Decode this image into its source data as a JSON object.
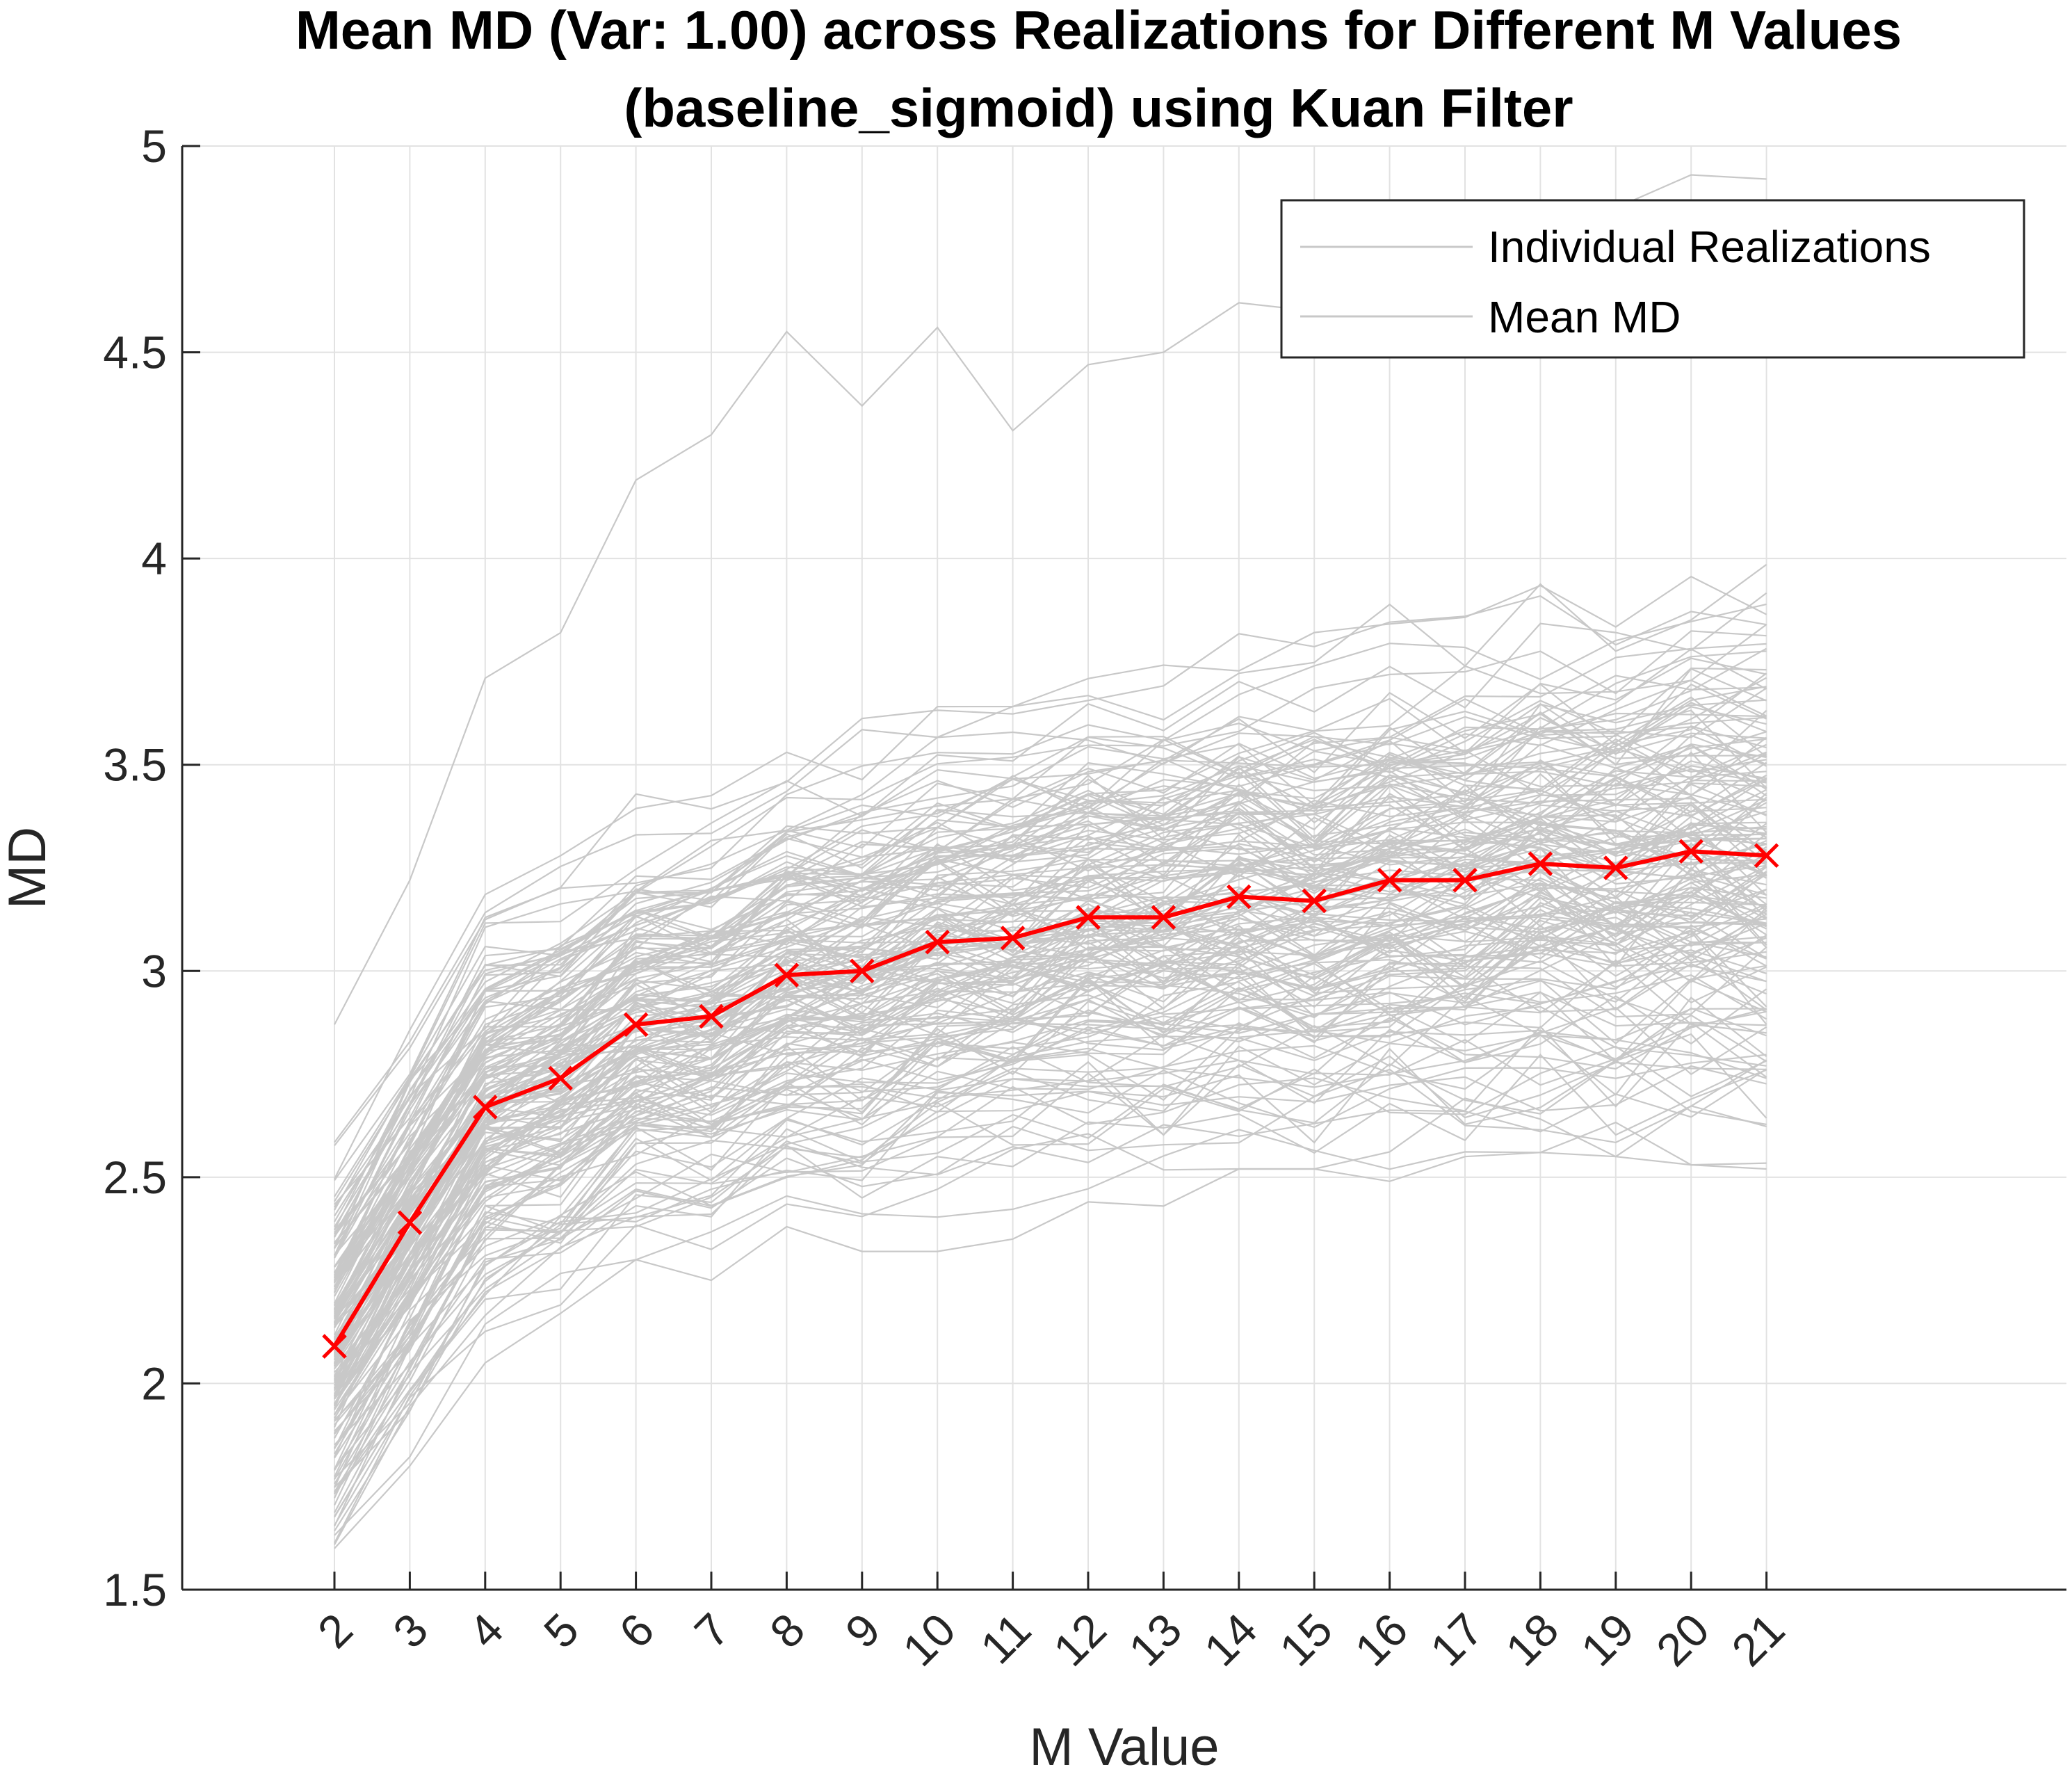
{
  "chart_data": {
    "type": "line",
    "title": "Mean MD (Var: 1.00) across Realizations for Different M Values",
    "subtitle": "(baseline_sigmoid) using Kuan Filter",
    "xlabel": "M Value",
    "ylabel": "MD",
    "xlim": [
      0,
      26
    ],
    "ylim": [
      1.5,
      5
    ],
    "x": [
      2,
      3,
      4,
      5,
      6,
      7,
      8,
      9,
      10,
      11,
      12,
      13,
      14,
      15,
      16,
      17,
      18,
      19,
      20,
      21
    ],
    "x_tick_labels": [
      "2",
      "3",
      "4",
      "5",
      "6",
      "7",
      "8",
      "9",
      "10",
      "11",
      "12",
      "13",
      "14",
      "15",
      "16",
      "17",
      "18",
      "19",
      "20",
      "21"
    ],
    "y_ticks": [
      1.5,
      2,
      2.5,
      3,
      3.5,
      4,
      4.5,
      5
    ],
    "y_tick_labels": [
      "1.5",
      "2",
      "2.5",
      "3",
      "3.5",
      "4",
      "4.5",
      "5"
    ],
    "grid": true,
    "legend_position": "top-right",
    "legend": [
      "Individual Realizations",
      "Mean MD"
    ],
    "series": [
      {
        "name": "Mean MD",
        "color": "#ff0000",
        "marker": "x",
        "values": [
          2.09,
          2.39,
          2.67,
          2.74,
          2.87,
          2.89,
          2.99,
          3.0,
          3.07,
          3.08,
          3.13,
          3.13,
          3.18,
          3.17,
          3.22,
          3.22,
          3.26,
          3.25,
          3.29,
          3.28
        ]
      },
      {
        "name": "Individual Realizations",
        "color": "#c8c8c8",
        "count": 180,
        "representative_upper_envelope": [
          2.87,
          3.22,
          3.71,
          3.82,
          4.19,
          4.3,
          4.55,
          4.37,
          4.56,
          4.31,
          4.47,
          4.5,
          4.62,
          4.6,
          4.75,
          4.8,
          4.82,
          4.85,
          4.93,
          4.92
        ],
        "representative_lower_envelope": [
          1.6,
          1.8,
          2.05,
          2.17,
          2.3,
          2.25,
          2.38,
          2.32,
          2.32,
          2.35,
          2.44,
          2.43,
          2.52,
          2.52,
          2.49,
          2.55,
          2.56,
          2.55,
          2.53,
          2.52
        ]
      }
    ]
  }
}
